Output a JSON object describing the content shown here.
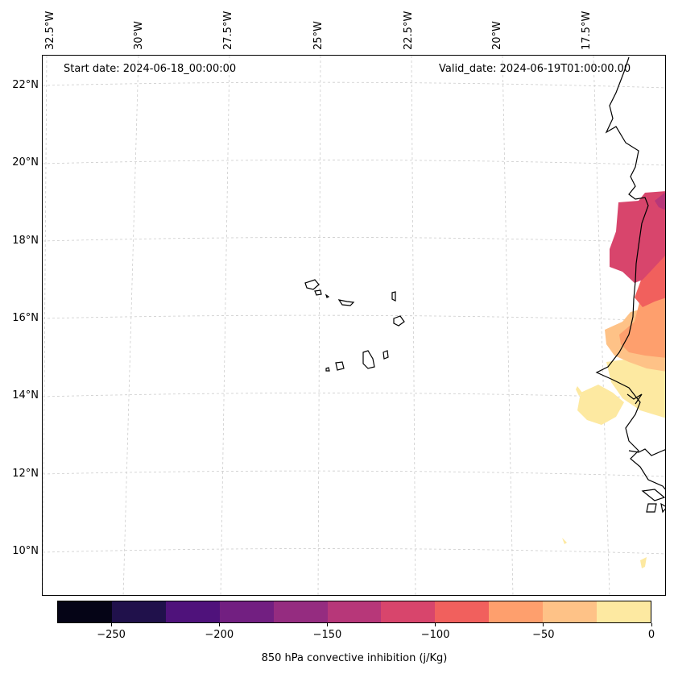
{
  "map": {
    "start_date_label": "Start date: 2024-06-18_00:00:00",
    "valid_date_label": "Valid_date: 2024-06-19T01:00:00.00",
    "longitude_labels": [
      "32.5°W",
      "30°W",
      "27.5°W",
      "25°W",
      "22.5°W",
      "20°W",
      "17.5°W"
    ],
    "latitude_labels": [
      "22°N",
      "20°N",
      "18°N",
      "16°N",
      "14°N",
      "12°N",
      "10°N"
    ]
  },
  "colorbar": {
    "title": "850 hPa convective inhibition (j/Kg)",
    "tick_labels": [
      "−250",
      "−200",
      "−150",
      "−100",
      "−50",
      "0"
    ],
    "colors": [
      "#050416",
      "#20114b",
      "#4f127b",
      "#721f81",
      "#952c80",
      "#b73779",
      "#d8456c",
      "#f1605d",
      "#fe9f6d",
      "#fec287",
      "#fde9a1"
    ],
    "levels": [
      -275,
      -250,
      -225,
      -200,
      -175,
      -150,
      -125,
      -100,
      -75,
      -50,
      -25,
      0
    ]
  }
}
